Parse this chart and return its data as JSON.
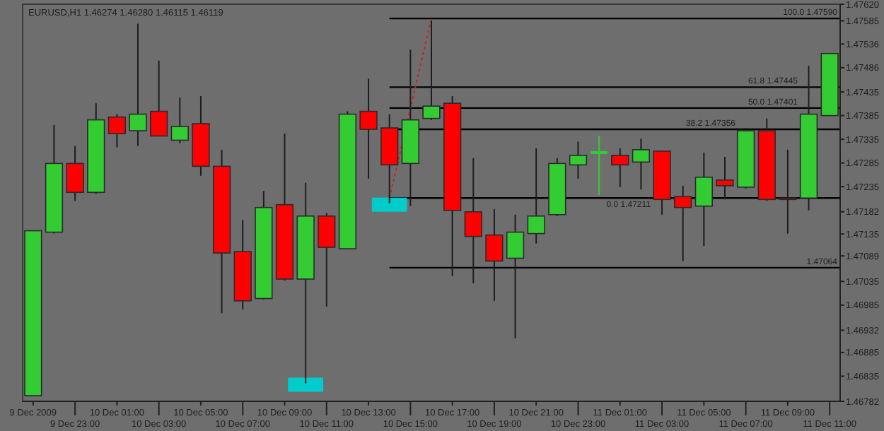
{
  "chart_data": {
    "type": "candlestick",
    "title": "EURUSD,H1 1.46274 1.46280 1.46115 1.46119",
    "categories": [
      "9 Dec 2009",
      null,
      "9 Dec 23:00",
      null,
      "10 Dec 01:00",
      null,
      "10 Dec 03:00",
      null,
      "10 Dec 05:00",
      null,
      "10 Dec 07:00",
      null,
      "10 Dec 09:00",
      null,
      "10 Dec 11:00",
      null,
      "10 Dec 13:00",
      null,
      "10 Dec 15:00",
      null,
      "10 Dec 17:00",
      null,
      "10 Dec 19:00",
      null,
      "10 Dec 21:00",
      null,
      "10 Dec 23:00",
      null,
      "11 Dec 01:00",
      null,
      "11 Dec 03:00",
      null,
      "11 Dec 05:00",
      null,
      "11 Dec 07:00",
      null,
      "11 Dec 09:00",
      null,
      "11 Dec 11:00"
    ],
    "ohlc": [
      [
        1.46794,
        1.47142,
        1.46794,
        1.47142
      ],
      [
        1.47139,
        1.47365,
        1.47136,
        1.47284
      ],
      [
        1.47284,
        1.47321,
        1.47205,
        1.47223
      ],
      [
        1.47223,
        1.47411,
        1.4722,
        1.47376
      ],
      [
        1.47382,
        1.47388,
        1.47318,
        1.47347
      ],
      [
        1.47353,
        1.47579,
        1.47321,
        1.47388
      ],
      [
        1.47394,
        1.47501,
        1.47342,
        1.47342
      ],
      [
        1.47333,
        1.47423,
        1.47327,
        1.47362
      ],
      [
        1.47368,
        1.47426,
        1.47258,
        1.47278
      ],
      [
        1.47278,
        1.47313,
        1.46968,
        1.47095
      ],
      [
        1.47098,
        1.47165,
        1.46976,
        1.46994
      ],
      [
        1.46999,
        1.47226,
        1.46997,
        1.47191
      ],
      [
        1.47197,
        1.47347,
        1.47037,
        1.4704
      ],
      [
        1.4704,
        1.47243,
        1.4682,
        1.47173
      ],
      [
        1.47173,
        1.47179,
        1.46982,
        1.47107
      ],
      [
        1.47104,
        1.47394,
        1.47104,
        1.47388
      ],
      [
        1.47394,
        1.47463,
        1.47252,
        1.47356
      ],
      [
        1.47359,
        1.47388,
        1.472,
        1.47281
      ],
      [
        1.47284,
        1.47524,
        1.47194,
        1.47376
      ],
      [
        1.47379,
        1.47585,
        1.47376,
        1.47405
      ],
      [
        1.47411,
        1.47426,
        1.47046,
        1.47185
      ],
      [
        1.47182,
        1.47295,
        1.47031,
        1.4713
      ],
      [
        1.47133,
        1.47188,
        1.46994,
        1.47078
      ],
      [
        1.47084,
        1.47176,
        1.46915,
        1.47139
      ],
      [
        1.47136,
        1.47316,
        1.47115,
        1.47173
      ],
      [
        1.47176,
        1.47295,
        1.47173,
        1.47284
      ],
      [
        1.47281,
        1.4733,
        1.47252,
        1.47301
      ],
      [
        1.47307,
        1.47342,
        1.47217,
        1.47307
      ],
      [
        1.47301,
        1.47316,
        1.47234,
        1.47281
      ],
      [
        1.47287,
        1.47336,
        1.47229,
        1.47313
      ],
      [
        1.4731,
        1.4731,
        1.47176,
        1.47208
      ],
      [
        1.47214,
        1.47237,
        1.47078,
        1.47191
      ],
      [
        1.47194,
        1.47307,
        1.4711,
        1.47255
      ],
      [
        1.47249,
        1.47298,
        1.47208,
        1.47237
      ],
      [
        1.47234,
        1.47359,
        1.47231,
        1.47353
      ],
      [
        1.47353,
        1.47379,
        1.47205,
        1.47208
      ],
      [
        1.47211,
        1.47313,
        1.47136,
        1.47208
      ],
      [
        1.47211,
        1.4749,
        1.47185,
        1.47388
      ],
      [
        1.47385,
        1.47516,
        1.47385,
        1.47516
      ]
    ],
    "colors": [
      "#33cc33",
      "#33cc33",
      "#ff0000",
      "#33cc33",
      "#ff0000",
      "#33cc33",
      "#ff0000",
      "#33cc33",
      "#ff0000",
      "#ff0000",
      "#ff0000",
      "#33cc33",
      "#ff0000",
      "#33cc33",
      "#ff0000",
      "#33cc33",
      "#ff0000",
      "#ff0000",
      "#33cc33",
      "#33cc33",
      "#ff0000",
      "#ff0000",
      "#ff0000",
      "#33cc33",
      "#33cc33",
      "#33cc33",
      "#33cc33",
      "#33cc33",
      "#ff0000",
      "#33cc33",
      "#ff0000",
      "#ff0000",
      "#33cc33",
      "#ff0000",
      "#33cc33",
      "#ff0000",
      "#990000",
      "#33cc33",
      "#33cc33"
    ],
    "series": [
      {
        "type": "scatter",
        "color": "#00cccc",
        "marker": "square",
        "values": [
          null,
          null,
          null,
          null,
          null,
          null,
          null,
          null,
          null,
          null,
          null,
          null,
          null,
          1.46817,
          null,
          null,
          null,
          1.47197,
          null,
          null,
          null,
          null,
          null,
          null,
          null,
          null,
          null,
          null,
          null,
          null,
          null,
          null,
          null,
          null,
          null,
          null,
          null,
          null,
          null
        ]
      },
      {
        "type": "line",
        "color": "#cc2222",
        "line_style": "dotted",
        "values": [
          null,
          null,
          null,
          null,
          null,
          null,
          null,
          null,
          null,
          null,
          null,
          null,
          null,
          null,
          null,
          null,
          null,
          1.47211,
          null,
          1.4759,
          null,
          null,
          null,
          null,
          null,
          null,
          null,
          null,
          null,
          null,
          null,
          null,
          null,
          null,
          null,
          null,
          null,
          null,
          null
        ]
      }
    ],
    "ylim": [
      1.46782,
      1.4762
    ],
    "yticks": [
      {
        "value": 1.4762,
        "label": "1.47620"
      },
      1.47585,
      1.47536,
      1.47486,
      1.47435,
      1.47385,
      1.47335,
      1.47285,
      1.47235,
      1.47182,
      1.47135,
      1.47089,
      1.47035,
      1.46985,
      1.46932,
      1.46885,
      1.46835,
      1.46782
    ],
    "ref_lines": [
      {
        "axis": "y",
        "value": 1.4759,
        "label": "100.0 1.47590",
        "color": "#000000"
      },
      {
        "axis": "y",
        "value": 1.47445,
        "label": "61.8 1.47445",
        "color": "#000000"
      },
      {
        "axis": "y",
        "value": 1.47401,
        "label": "50.0 1.47401",
        "color": "#000000"
      },
      {
        "axis": "y",
        "value": 1.47356,
        "label": "38.2 1.47356",
        "color": "#000000"
      },
      {
        "axis": "y",
        "value": 1.47211,
        "label": "0.0 1.47211",
        "color": "#000000"
      },
      {
        "axis": "y",
        "value": 1.47064,
        "label": "1.47064",
        "color": "#000000"
      }
    ]
  }
}
